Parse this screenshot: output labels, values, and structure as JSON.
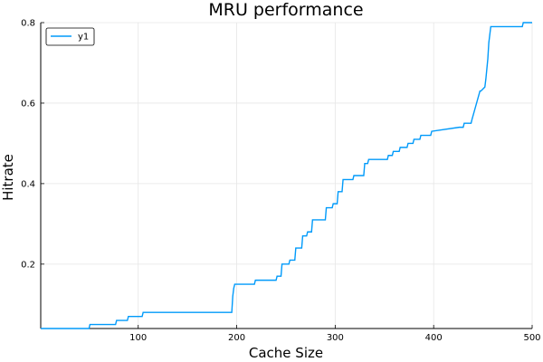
{
  "chart_data": {
    "type": "line",
    "title": "MRU performance",
    "xlabel": "Cache Size",
    "ylabel": "Hitrate",
    "xlim": [
      1,
      500
    ],
    "ylim": [
      0.04,
      0.8
    ],
    "xticks": [
      100,
      200,
      300,
      400,
      500
    ],
    "yticks": [
      0.2,
      0.4,
      0.6,
      0.8
    ],
    "xtick_labels": [
      "100",
      "200",
      "300",
      "400",
      "500"
    ],
    "ytick_labels": [
      "0.2",
      "0.4",
      "0.6",
      "0.8"
    ],
    "grid": true,
    "legend": "top-left",
    "color": "#009AFA",
    "series": [
      {
        "name": "y1",
        "x": [
          1,
          50,
          51,
          77,
          78,
          89,
          90,
          104,
          105,
          195,
          196,
          197,
          198,
          218,
          219,
          240,
          241,
          245,
          246,
          253,
          254,
          259,
          260,
          266,
          267,
          271,
          272,
          276,
          277,
          290,
          291,
          297,
          298,
          302,
          303,
          307,
          308,
          318,
          319,
          329,
          330,
          333,
          334,
          353,
          354,
          358,
          359,
          365,
          366,
          373,
          374,
          379,
          380,
          386,
          387,
          397,
          398,
          426,
          427,
          430,
          431,
          438,
          439,
          447,
          448,
          452,
          453,
          455,
          456,
          458,
          459,
          460,
          461,
          490,
          491,
          500
        ],
        "y": [
          0.04,
          0.04,
          0.05,
          0.05,
          0.06,
          0.06,
          0.07,
          0.07,
          0.08,
          0.08,
          0.12,
          0.14,
          0.15,
          0.15,
          0.16,
          0.16,
          0.17,
          0.17,
          0.2,
          0.2,
          0.21,
          0.21,
          0.24,
          0.24,
          0.27,
          0.27,
          0.28,
          0.28,
          0.31,
          0.31,
          0.34,
          0.34,
          0.35,
          0.35,
          0.38,
          0.38,
          0.41,
          0.41,
          0.42,
          0.42,
          0.45,
          0.45,
          0.46,
          0.46,
          0.47,
          0.47,
          0.48,
          0.48,
          0.49,
          0.49,
          0.5,
          0.5,
          0.51,
          0.51,
          0.52,
          0.52,
          0.53,
          0.54,
          0.54,
          0.54,
          0.55,
          0.55,
          0.56,
          0.63,
          0.63,
          0.64,
          0.66,
          0.71,
          0.75,
          0.79,
          0.79,
          0.79,
          0.79,
          0.79,
          0.8,
          0.8
        ]
      }
    ]
  }
}
